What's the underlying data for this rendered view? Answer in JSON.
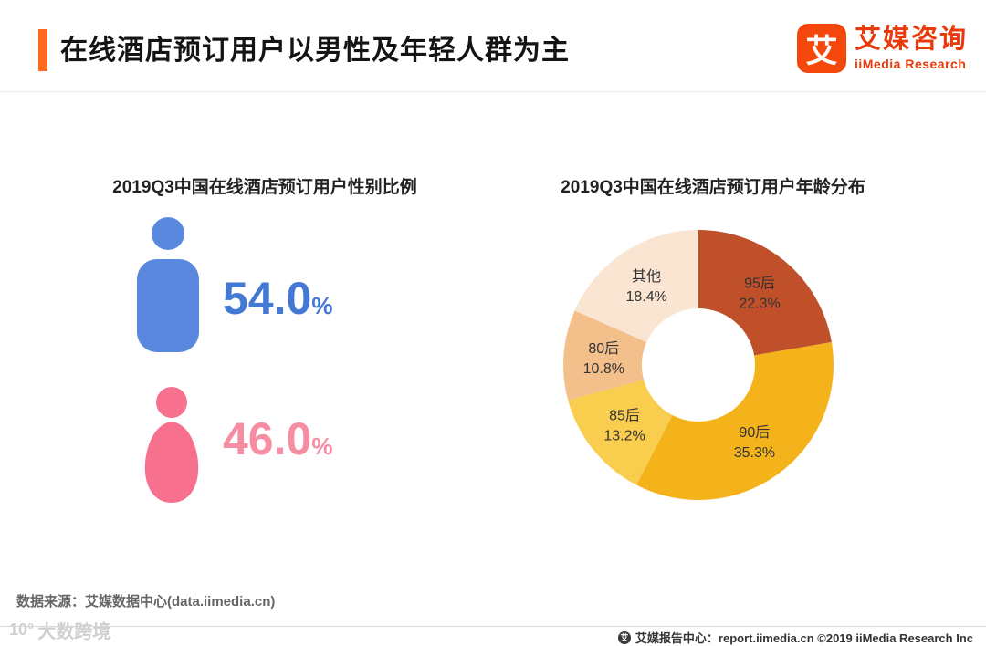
{
  "header": {
    "title": "在线酒店预订用户以男性及年轻人群为主",
    "accent_color": "#FB6A1E",
    "logo": {
      "glyph": "艾",
      "name_cn": "艾媒咨询",
      "name_en": "iiMedia Research",
      "color": "#E93A0B"
    }
  },
  "charts": {
    "gender": {
      "title": "2019Q3中国在线酒店预订用户性别比例",
      "male": {
        "value": "54.0",
        "unit": "%",
        "color": "#5A88DF",
        "text_color": "#4478D5"
      },
      "female": {
        "value": "46.0",
        "unit": "%",
        "color": "#F7718F",
        "text_color": "#F78DA2"
      }
    },
    "age": {
      "title": "2019Q3中国在线酒店预订用户年龄分布"
    }
  },
  "chart_data": [
    {
      "type": "pie",
      "layout_hint": "pictogram",
      "title": "2019Q3中国在线酒店预订用户性别比例",
      "categories": [
        "男性",
        "女性"
      ],
      "values": [
        54.0,
        46.0
      ],
      "labels": [
        "54.0%",
        "46.0%"
      ],
      "colors": [
        "#5A88DF",
        "#F7718F"
      ]
    },
    {
      "type": "pie",
      "subtype": "donut",
      "title": "2019Q3中国在线酒店预订用户年龄分布",
      "categories": [
        "95后",
        "90后",
        "85后",
        "80后",
        "其他"
      ],
      "values": [
        22.3,
        35.3,
        13.2,
        10.8,
        18.4
      ],
      "labels": [
        "22.3%",
        "35.3%",
        "13.2%",
        "10.8%",
        "18.4%"
      ],
      "colors": [
        "#C0502A",
        "#F5B31B",
        "#F9CE4F",
        "#F3BF8B",
        "#FAE5D2"
      ],
      "start_angle_deg": 0,
      "direction": "clockwise",
      "inner_radius_ratio": 0.42,
      "legend": "none"
    }
  ],
  "footer": {
    "source": "数据来源：艾媒数据中心(data.iimedia.cn)",
    "mark_glyph": "艾",
    "report_center": "艾媒报告中心：report.iimedia.cn ©2019  iiMedia Research Inc",
    "watermark_logo": "10°",
    "watermark_text": "大数跨境"
  }
}
